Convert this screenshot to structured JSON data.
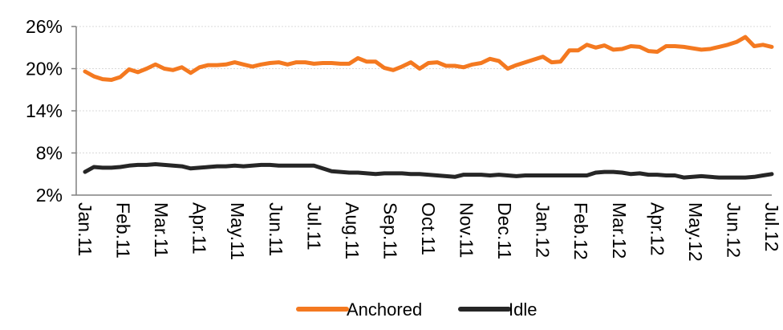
{
  "chart_data": {
    "type": "line",
    "title": "",
    "xlabel": "",
    "ylabel": "",
    "ylim": [
      2,
      26
    ],
    "yticks": [
      "2%",
      "8%",
      "14%",
      "20%",
      "26%"
    ],
    "ytick_values": [
      2,
      8,
      14,
      20,
      26
    ],
    "x_tick_labels": [
      "Jan.11",
      "Feb.11",
      "Mar.11",
      "Apr.11",
      "May.11",
      "Jun.11",
      "Jul.11",
      "Aug.11",
      "Sep.11",
      "Oct.11",
      "Nov.11",
      "Dec.11",
      "Jan.12",
      "Feb.12",
      "Mar.12",
      "Apr.12",
      "May.12",
      "Jun.12",
      "Jul.12"
    ],
    "grid": true,
    "legend_position": "bottom",
    "series": [
      {
        "name": "Anchored",
        "color": "#f47920",
        "values": [
          19.6,
          18.9,
          18.5,
          18.4,
          18.8,
          19.9,
          19.5,
          20.0,
          20.6,
          20.0,
          19.8,
          20.2,
          19.4,
          20.2,
          20.5,
          20.5,
          20.6,
          20.9,
          20.6,
          20.3,
          20.6,
          20.8,
          20.9,
          20.6,
          20.9,
          20.9,
          20.7,
          20.8,
          20.8,
          20.7,
          20.7,
          21.5,
          21.0,
          21.0,
          20.1,
          19.8,
          20.3,
          20.9,
          20.0,
          20.8,
          20.9,
          20.4,
          20.4,
          20.2,
          20.6,
          20.8,
          21.4,
          21.1,
          20.0,
          20.5,
          20.9,
          21.3,
          21.7,
          20.9,
          21.0,
          22.6,
          22.6,
          23.4,
          23.0,
          23.3,
          22.7,
          22.8,
          23.2,
          23.1,
          22.5,
          22.4,
          23.2,
          23.2,
          23.1,
          22.9,
          22.7,
          22.8,
          23.1,
          23.4,
          23.8,
          24.5,
          23.2,
          23.4,
          23.1
        ]
      },
      {
        "name": "Idle",
        "color": "#262626",
        "values": [
          5.3,
          6.0,
          5.9,
          5.9,
          6.0,
          6.2,
          6.3,
          6.3,
          6.4,
          6.3,
          6.2,
          6.1,
          5.8,
          5.9,
          6.0,
          6.1,
          6.1,
          6.2,
          6.1,
          6.2,
          6.3,
          6.3,
          6.2,
          6.2,
          6.2,
          6.2,
          6.2,
          5.8,
          5.4,
          5.3,
          5.2,
          5.2,
          5.1,
          5.0,
          5.1,
          5.1,
          5.1,
          5.0,
          5.0,
          4.9,
          4.8,
          4.7,
          4.6,
          4.9,
          4.9,
          4.9,
          4.8,
          4.9,
          4.8,
          4.7,
          4.8,
          4.8,
          4.8,
          4.8,
          4.8,
          4.8,
          4.8,
          4.8,
          5.2,
          5.3,
          5.3,
          5.2,
          5.0,
          5.1,
          4.9,
          4.9,
          4.8,
          4.8,
          4.5,
          4.6,
          4.7,
          4.6,
          4.5,
          4.5,
          4.5,
          4.5,
          4.6,
          4.8,
          5.0
        ]
      }
    ]
  }
}
